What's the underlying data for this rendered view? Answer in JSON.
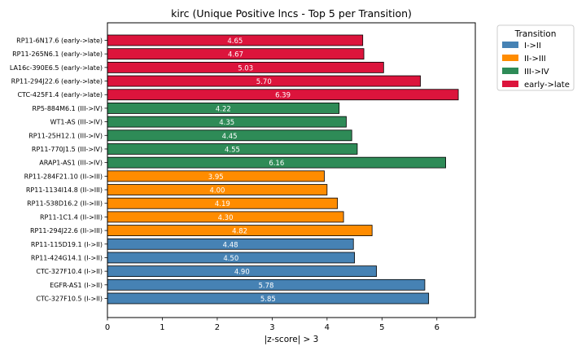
{
  "chart_data": {
    "type": "bar",
    "orientation": "horizontal",
    "title": "kirc (Unique Positive lncs - Top 5 per Transition)",
    "xlabel": "|z-score| > 3",
    "ylabel": "",
    "xlim": [
      0,
      6.7
    ],
    "xticks": [
      0,
      1,
      2,
      3,
      4,
      5,
      6
    ],
    "grid": false,
    "legend": {
      "title": "Transition",
      "placement": "outside top-right",
      "entries": [
        {
          "label": "I->II",
          "color": "#4682b4"
        },
        {
          "label": "II->III",
          "color": "#ff8c00"
        },
        {
          "label": "III->IV",
          "color": "#2e8b57"
        },
        {
          "label": "early->late",
          "color": "#dc143c"
        }
      ]
    },
    "bars": [
      {
        "label": "RP11-6N17.6 (early->late)",
        "value": 4.65,
        "value_label": "4.65",
        "group": "early->late"
      },
      {
        "label": "RP11-265N6.1 (early->late)",
        "value": 4.67,
        "value_label": "4.67",
        "group": "early->late"
      },
      {
        "label": "LA16c-390E6.5 (early->late)",
        "value": 5.03,
        "value_label": "5.03",
        "group": "early->late"
      },
      {
        "label": "RP11-294J22.6 (early->late)",
        "value": 5.7,
        "value_label": "5.70",
        "group": "early->late"
      },
      {
        "label": "CTC-425F1.4 (early->late)",
        "value": 6.39,
        "value_label": "6.39",
        "group": "early->late"
      },
      {
        "label": "RP5-884M6.1 (III->IV)",
        "value": 4.22,
        "value_label": "4.22",
        "group": "III->IV"
      },
      {
        "label": "WT1-AS (III->IV)",
        "value": 4.35,
        "value_label": "4.35",
        "group": "III->IV"
      },
      {
        "label": "RP11-25H12.1 (III->IV)",
        "value": 4.45,
        "value_label": "4.45",
        "group": "III->IV"
      },
      {
        "label": "RP11-770J1.5 (III->IV)",
        "value": 4.55,
        "value_label": "4.55",
        "group": "III->IV"
      },
      {
        "label": "ARAP1-AS1 (III->IV)",
        "value": 6.16,
        "value_label": "6.16",
        "group": "III->IV"
      },
      {
        "label": "RP11-284F21.10 (II->III)",
        "value": 3.95,
        "value_label": "3.95",
        "group": "II->III"
      },
      {
        "label": "RP11-1134I14.8 (II->III)",
        "value": 4.0,
        "value_label": "4.00",
        "group": "II->III"
      },
      {
        "label": "RP11-538D16.2 (II->III)",
        "value": 4.19,
        "value_label": "4.19",
        "group": "II->III"
      },
      {
        "label": "RP11-1C1.4 (II->III)",
        "value": 4.3,
        "value_label": "4.30",
        "group": "II->III"
      },
      {
        "label": "RP11-294J22.6 (II->III)",
        "value": 4.82,
        "value_label": "4.82",
        "group": "II->III"
      },
      {
        "label": "RP11-115D19.1 (I->II)",
        "value": 4.48,
        "value_label": "4.48",
        "group": "I->II"
      },
      {
        "label": "RP11-424G14.1 (I->II)",
        "value": 4.5,
        "value_label": "4.50",
        "group": "I->II"
      },
      {
        "label": "CTC-327F10.4 (I->II)",
        "value": 4.9,
        "value_label": "4.90",
        "group": "I->II"
      },
      {
        "label": "EGFR-AS1 (I->II)",
        "value": 5.78,
        "value_label": "5.78",
        "group": "I->II"
      },
      {
        "label": "CTC-327F10.5 (I->II)",
        "value": 5.85,
        "value_label": "5.85",
        "group": "I->II"
      }
    ]
  }
}
